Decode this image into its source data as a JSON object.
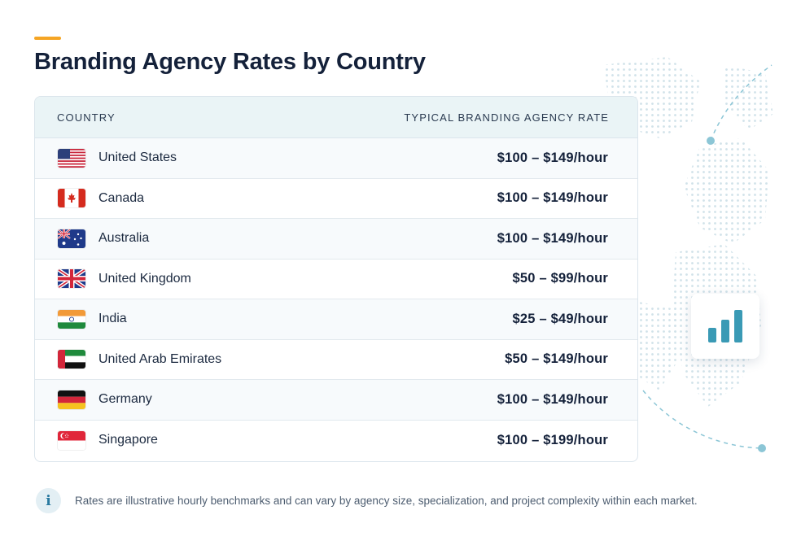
{
  "page": {
    "title": "Branding Agency Rates by Country",
    "accent_color": "#f5a524"
  },
  "table": {
    "header_country": "COUNTRY",
    "header_rate": "TYPICAL BRANDING AGENCY RATE",
    "rows": [
      {
        "country": "United States",
        "rate": "$100 – $149/hour",
        "flag": "us-flag-icon"
      },
      {
        "country": "Canada",
        "rate": "$100 – $149/hour",
        "flag": "canada-flag-icon"
      },
      {
        "country": "Australia",
        "rate": "$100 – $149/hour",
        "flag": "australia-flag-icon"
      },
      {
        "country": "United Kingdom",
        "rate": "$50 – $99/hour",
        "flag": "uk-flag-icon"
      },
      {
        "country": "India",
        "rate": "$25 – $49/hour",
        "flag": "india-flag-icon"
      },
      {
        "country": "United Arab Emirates",
        "rate": "$50 – $149/hour",
        "flag": "uae-flag-icon"
      },
      {
        "country": "Germany",
        "rate": "$100 – $149/hour",
        "flag": "germany-flag-icon"
      },
      {
        "country": "Singapore",
        "rate": "$100 – $199/hour",
        "flag": "singapore-flag-icon"
      }
    ]
  },
  "decor": {
    "chart_icon": "bar-chart-icon",
    "chart_color": "#3a9ab5"
  },
  "footer": {
    "info_icon": "info-icon",
    "info_glyph": "i",
    "note": "Rates are illustrative hourly benchmarks and can vary by agency size, specialization, and project complexity within each market."
  }
}
